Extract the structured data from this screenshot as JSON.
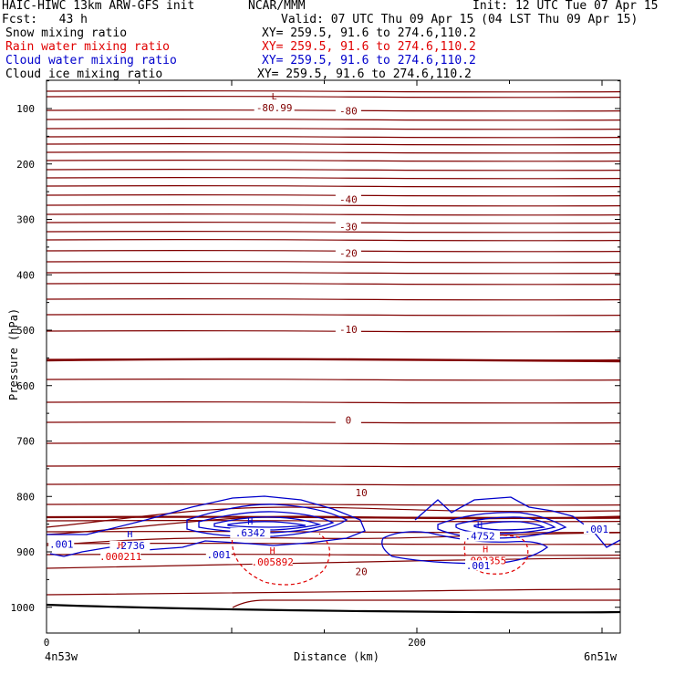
{
  "header": {
    "model": "HAIC-HIWC 13km ARW-GFS init",
    "org": "NCAR/MMM",
    "init": "Init: 12 UTC Tue 07 Apr 15",
    "fcst": "Fcst:   43 h",
    "valid": "Valid: 07 UTC Thu 09 Apr 15 (04 LST Thu 09 Apr 15)"
  },
  "fields": [
    {
      "name": "Snow mixing ratio",
      "xy": "XY= 259.5, 91.6 to 274.6,110.2",
      "color": "#000000"
    },
    {
      "name": "Rain water mixing ratio",
      "xy": "XY= 259.5, 91.6 to 274.6,110.2",
      "color": "#e00000"
    },
    {
      "name": "Cloud water mixing ratio",
      "xy": "XY= 259.5, 91.6 to 274.6,110.2",
      "color": "#0000cc"
    },
    {
      "name": "Cloud ice mixing ratio",
      "xy": "XY= 259.5, 91.6 to 274.6,110.2",
      "color": "#000000"
    }
  ],
  "chart_data": {
    "type": "contour-cross-section",
    "xlabel": "Distance (km)",
    "ylabel": "Pressure (hPa)",
    "xlim": [
      0,
      310
    ],
    "ylim": [
      1050,
      50
    ],
    "x_ticks": [
      0,
      200
    ],
    "y_ticks": [
      100,
      200,
      300,
      400,
      500,
      600,
      700,
      800,
      900,
      1000
    ],
    "endpoints": {
      "left": "4n53w",
      "right": "6n51w"
    },
    "temperature_contours": [
      {
        "label": "-80",
        "x": 163,
        "p": 104
      },
      {
        "label": "-40",
        "x": 163,
        "p": 264
      },
      {
        "label": "-30",
        "x": 163,
        "p": 313
      },
      {
        "label": "-20",
        "x": 163,
        "p": 361
      },
      {
        "label": "-10",
        "x": 163,
        "p": 498
      },
      {
        "label": "0",
        "x": 163,
        "p": 662
      },
      {
        "label": "10",
        "x": 170,
        "p": 793
      },
      {
        "label": "20",
        "x": 170,
        "p": 935
      }
    ],
    "extrema": [
      {
        "type": "L",
        "value": "-80.99",
        "x": 123,
        "p": 95,
        "color": "#800000"
      },
      {
        "type": "H",
        "value": ".6342",
        "x": 110,
        "p": 862,
        "color": "#0000cc"
      },
      {
        "type": "H",
        "value": ".4752",
        "x": 234,
        "p": 868,
        "color": "#0000cc"
      },
      {
        "type": "H",
        "value": ".2736",
        "x": 45,
        "p": 885,
        "color": "#0000cc"
      },
      {
        "type": "H",
        "value": ".000211",
        "x": 40,
        "p": 905,
        "color": "#e00000"
      },
      {
        "type": "H",
        "value": ".005892",
        "x": 122,
        "p": 915,
        "color": "#e00000"
      },
      {
        "type": "H",
        "value": ".002355",
        "x": 237,
        "p": 912,
        "color": "#e00000"
      }
    ],
    "contour_labels": [
      {
        "label": ".001",
        "x": 8,
        "p": 886,
        "color": "#0000cc"
      },
      {
        "label": ".001",
        "x": 93,
        "p": 905,
        "color": "#0000cc"
      },
      {
        "label": ".001",
        "x": 297,
        "p": 859,
        "color": "#0000cc"
      },
      {
        "label": ".001",
        "x": 233,
        "p": 925,
        "color": "#0000cc"
      }
    ]
  }
}
